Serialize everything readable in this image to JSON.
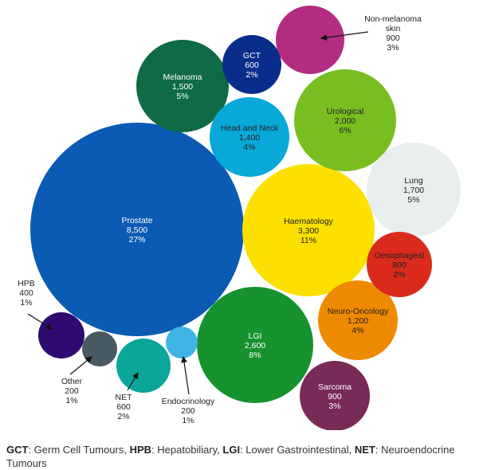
{
  "chart_data": {
    "type": "bubble",
    "unit_note": "",
    "bubbles": [
      {
        "name": "Prostate",
        "value": "8,500",
        "percent": "27%",
        "n": 8500,
        "color": "#0B5BB5",
        "text_color": "#ffffff",
        "label_inside": true
      },
      {
        "name": "Haematology",
        "value": "3,300",
        "percent": "11%",
        "n": 3300,
        "color": "#FCE100",
        "text_color": "#222222",
        "label_inside": true
      },
      {
        "name": "LGI",
        "value": "2,600",
        "percent": "8%",
        "n": 2600,
        "color": "#16922F",
        "text_color": "#ffffff",
        "label_inside": true
      },
      {
        "name": "Urological",
        "value": "2,000",
        "percent": "6%",
        "n": 2000,
        "color": "#78BE20",
        "text_color": "#222222",
        "label_inside": true
      },
      {
        "name": "Lung",
        "value": "1,700",
        "percent": "5%",
        "n": 1700,
        "color": "#E8EDED",
        "text_color": "#222222",
        "label_inside": true
      },
      {
        "name": "Melanoma",
        "value": "1,500",
        "percent": "5%",
        "n": 1500,
        "color": "#0E6B45",
        "text_color": "#ffffff",
        "label_inside": true
      },
      {
        "name": "Head and Neck",
        "value": "1,400",
        "percent": "4%",
        "n": 1400,
        "color": "#08A8D8",
        "text_color": "#222222",
        "label_inside": true
      },
      {
        "name": "Neuro-Oncology",
        "value": "1,200",
        "percent": "4%",
        "n": 1200,
        "color": "#EE8A00",
        "text_color": "#222222",
        "label_inside": true
      },
      {
        "name": "Sarcoma",
        "value": "900",
        "percent": "3%",
        "n": 900,
        "color": "#7A2A57",
        "text_color": "#ffffff",
        "label_inside": true
      },
      {
        "name": "Non-melanoma skin",
        "value": "900",
        "percent": "3%",
        "n": 900,
        "color": "#B42C81",
        "text_color": "#222222",
        "label_inside": false,
        "label_lines": [
          "Non-melanoma",
          "skin",
          "900",
          "3%"
        ]
      },
      {
        "name": "Oesophageal",
        "value": "800",
        "percent": "2%",
        "n": 800,
        "color": "#D92A1C",
        "text_color": "#222222",
        "label_inside": true
      },
      {
        "name": "GCT",
        "value": "600",
        "percent": "2%",
        "n": 600,
        "color": "#0A2D8C",
        "text_color": "#ffffff",
        "label_inside": true
      },
      {
        "name": "NET",
        "value": "600",
        "percent": "2%",
        "n": 600,
        "color": "#0AA69A",
        "text_color": "#222222",
        "label_inside": false,
        "label_lines": [
          "NET",
          "600",
          "2%"
        ]
      },
      {
        "name": "HPB",
        "value": "400",
        "percent": "1%",
        "n": 400,
        "color": "#2F0A70",
        "text_color": "#222222",
        "label_inside": false,
        "label_lines": [
          "HPB",
          "400",
          "1%"
        ]
      },
      {
        "name": "Other",
        "value": "200",
        "percent": "1%",
        "n": 200,
        "color": "#4A5A63",
        "text_color": "#222222",
        "label_inside": false,
        "label_lines": [
          "Other",
          "200",
          "1%"
        ]
      },
      {
        "name": "Endocrinology",
        "value": "200",
        "percent": "1%",
        "n": 200,
        "color": "#40B4E6",
        "text_color": "#222222",
        "label_inside": false,
        "label_lines": [
          "Endocrinology",
          "200",
          "1%"
        ]
      }
    ]
  },
  "footnote": [
    {
      "term": "GCT",
      "definition": ": Germ Cell Tumours,  "
    },
    {
      "term": "HPB",
      "definition": ": Hepatobiliary, "
    },
    {
      "term": "LGI",
      "definition": ": Lower Gastrointestinal, "
    },
    {
      "term": "NET",
      "definition": ": Neuroendocrine Tumours"
    }
  ]
}
